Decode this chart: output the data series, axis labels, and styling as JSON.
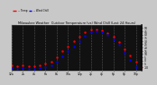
{
  "title": "Milwaukee Weather  Outdoor Temperature (vs) Wind Chill (Last 24 Hours)",
  "background_color": "#111111",
  "plot_bg_color": "#111111",
  "fig_bg_color": "#c8c8c8",
  "grid_color": "#555555",
  "temp_color": "#ff0000",
  "windchill_color": "#0000ff",
  "legend_temp": "-- Temp",
  "legend_wc": "-- Wind Chill",
  "ylim": [
    -15,
    55
  ],
  "ytick_vals": [
    50,
    45,
    40,
    35,
    30,
    25,
    20,
    15,
    10,
    5,
    0,
    -5,
    -10
  ],
  "xlim": [
    0,
    23
  ],
  "hours": [
    0,
    1,
    2,
    3,
    4,
    5,
    6,
    7,
    8,
    9,
    10,
    11,
    12,
    13,
    14,
    15,
    16,
    17,
    18,
    19,
    20,
    21,
    22,
    23
  ],
  "temp": [
    -8,
    -9,
    -8,
    -9,
    -9,
    -8,
    -5,
    -2,
    5,
    14,
    22,
    30,
    37,
    43,
    47,
    48,
    46,
    42,
    36,
    29,
    18,
    8,
    -2,
    -10
  ],
  "windchill": [
    -12,
    -13,
    -12,
    -13,
    -13,
    -12,
    -10,
    -8,
    -2,
    6,
    14,
    22,
    30,
    38,
    43,
    45,
    43,
    39,
    33,
    24,
    12,
    1,
    -10,
    -18
  ],
  "xtick_positions": [
    0,
    2,
    4,
    6,
    8,
    10,
    12,
    14,
    16,
    18,
    20,
    22
  ],
  "xtick_labels": [
    "12a",
    "2a",
    "4a",
    "6a",
    "8a",
    "10a",
    "12p",
    "2p",
    "4p",
    "6p",
    "8p",
    "10p"
  ],
  "right_border_color": "#000000",
  "spine_color": "#888888"
}
